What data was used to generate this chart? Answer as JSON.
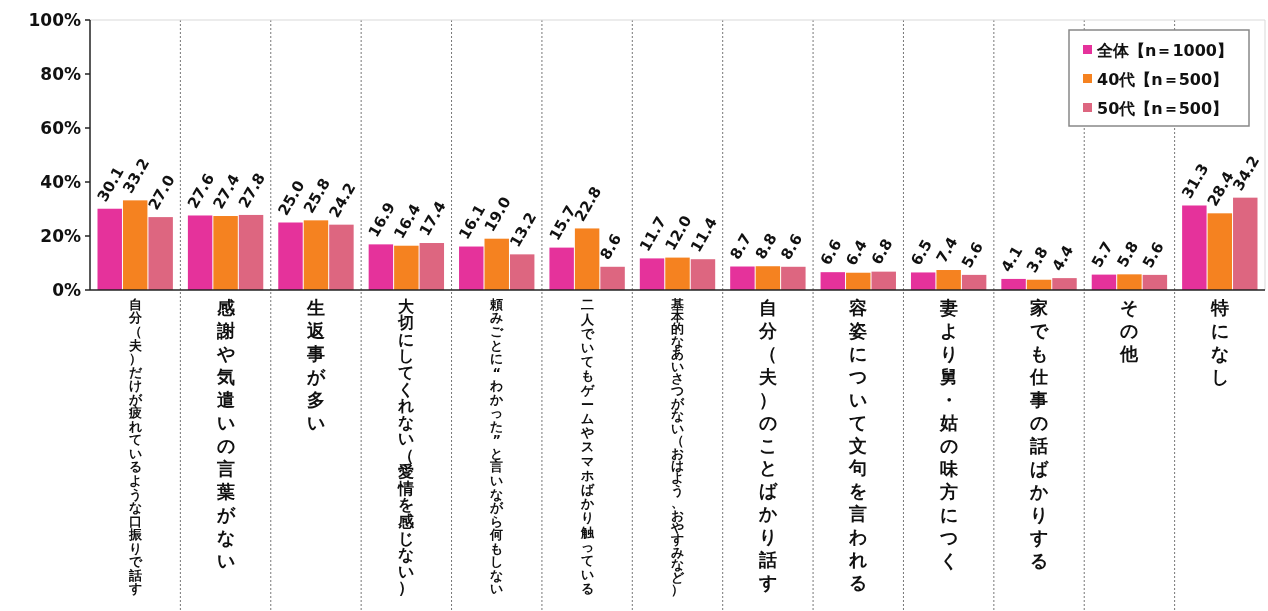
{
  "chart_data": {
    "type": "bar",
    "categories": [
      "自分（夫）だけが疲れているような口振りで話す",
      "感謝や気遣いの言葉がない",
      "生返事が多い",
      "大切にしてくれない（愛情を感じない）",
      "頼みごとに“わかった”と言いながら何もしない",
      "二人でいてもゲームやスマホばかり触っている",
      "基本的なあいさつがない（おはよう、おやすみなど）",
      "自分（夫）のことばかり話す",
      "容姿について文句を言われる",
      "妻より舅・姑の味方につく",
      "家でも仕事の話ばかりする",
      "その他",
      "特になし"
    ],
    "series": [
      {
        "name": "全体【n＝1000】",
        "color": "#e5329b",
        "values": [
          30.1,
          27.6,
          25.0,
          16.9,
          16.1,
          15.7,
          11.7,
          8.7,
          6.6,
          6.5,
          4.1,
          5.7,
          31.3
        ],
        "value_labels": [
          "30.1",
          "27.6",
          "25.0",
          "16.9",
          "16.1",
          "15.7",
          "11.7",
          "8.7",
          "6.6",
          "6.5",
          "4.1",
          "5.7",
          "31.3"
        ]
      },
      {
        "name": "40代【n＝500】",
        "color": "#f58220",
        "values": [
          33.2,
          27.4,
          25.8,
          16.4,
          19.0,
          22.8,
          12.0,
          8.8,
          6.4,
          7.4,
          3.8,
          5.8,
          28.4
        ],
        "value_labels": [
          "33.2",
          "27.4",
          "25.8",
          "16.4",
          "19.0",
          "22.8",
          "12.0",
          "8.8",
          "6.4",
          "7.4",
          "3.8",
          "5.8",
          "28.4"
        ]
      },
      {
        "name": "50代【n＝500】",
        "color": "#dd6680",
        "values": [
          27.0,
          27.8,
          24.2,
          17.4,
          13.2,
          8.6,
          11.4,
          8.6,
          6.8,
          5.6,
          4.4,
          5.6,
          34.2
        ],
        "value_labels": [
          "27.0",
          "27.8",
          "24.2",
          "17.4",
          "13.2",
          "8.6",
          "11.4",
          "8.6",
          "6.8",
          "5.6",
          "4.4",
          "5.6",
          "34.2"
        ]
      }
    ],
    "ylim": [
      0,
      100
    ],
    "yticks": [
      {
        "value": 0,
        "label": "0%"
      },
      {
        "value": 20,
        "label": "20%"
      },
      {
        "value": 40,
        "label": "40%"
      },
      {
        "value": 60,
        "label": "60%"
      },
      {
        "value": 80,
        "label": "80%"
      },
      {
        "value": 100,
        "label": "100%"
      }
    ],
    "grid": "x",
    "legend": "top right"
  }
}
